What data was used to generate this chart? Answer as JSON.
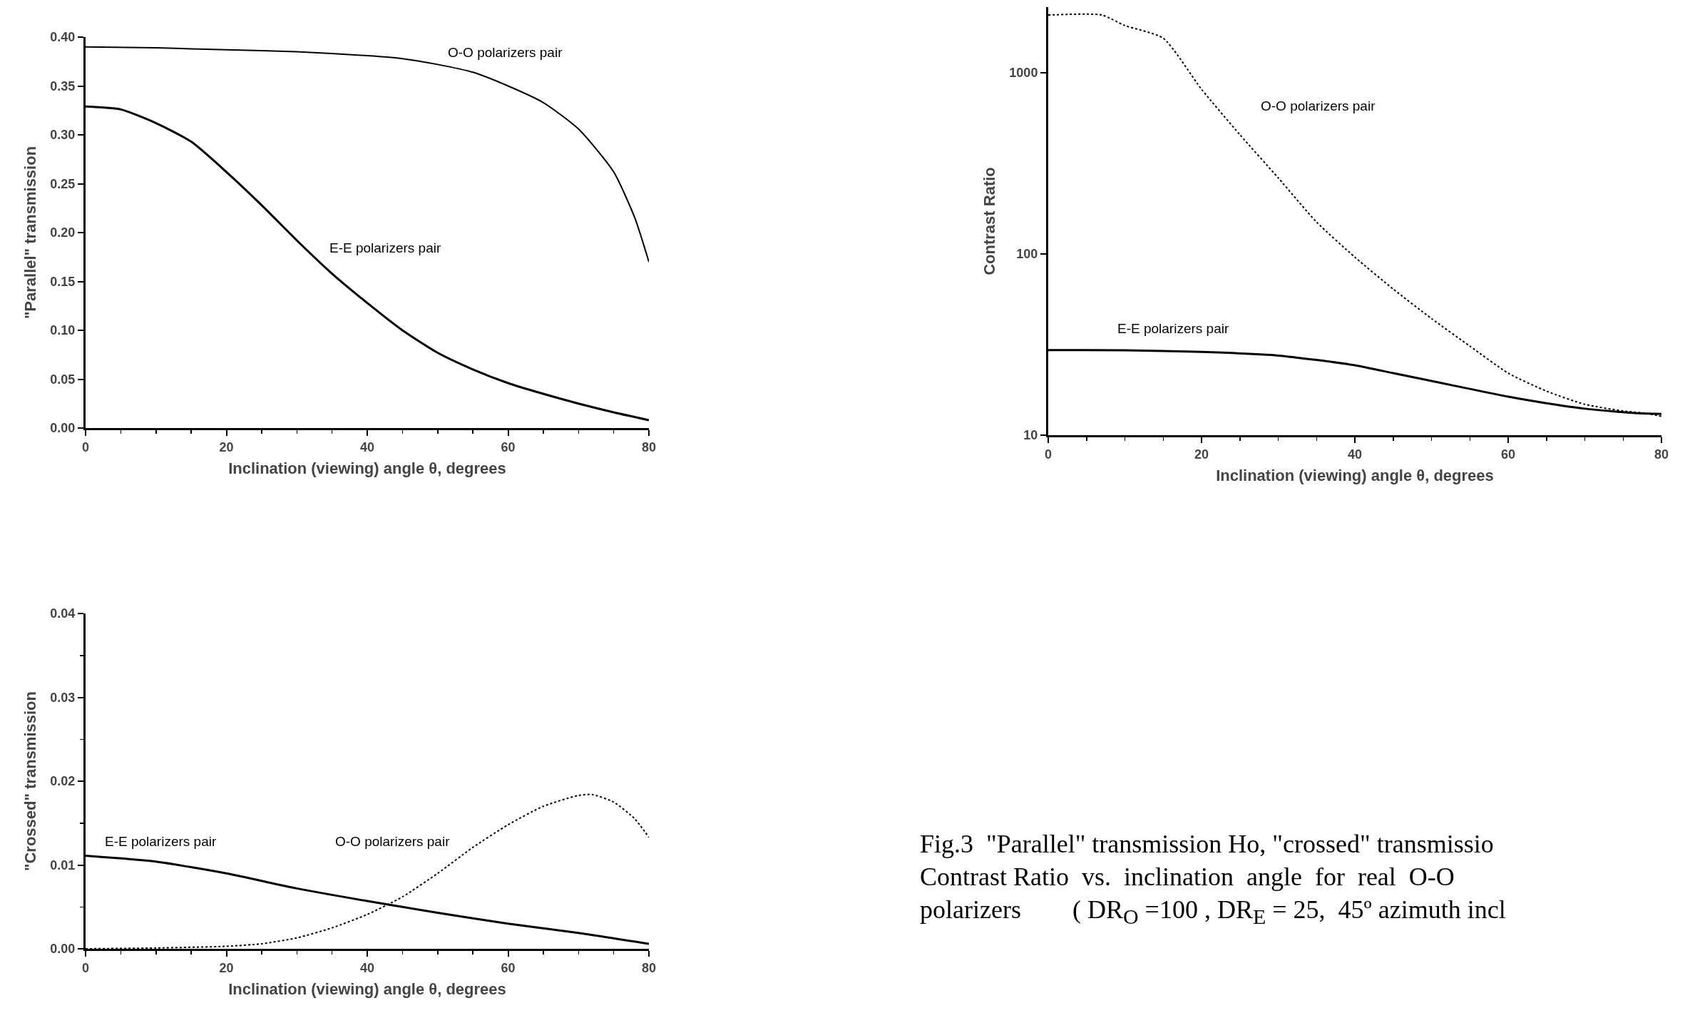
{
  "chart_data": [
    {
      "type": "line",
      "xlabel": "Inclination (viewing) angle θ, degrees",
      "ylabel": "\"Parallel\" transmission",
      "xlim": [
        0,
        80
      ],
      "xticks": [
        0,
        20,
        40,
        60,
        80
      ],
      "ylim": [
        0,
        0.4
      ],
      "yticks": [
        {
          "value": 0,
          "label": "0.00"
        },
        {
          "value": 0.05,
          "label": "0.05"
        },
        {
          "value": 0.1,
          "label": "0.10"
        },
        {
          "value": 0.15,
          "label": "0.15"
        },
        {
          "value": 0.2,
          "label": "0.20"
        },
        {
          "value": 0.25,
          "label": "0.25"
        },
        {
          "value": 0.3,
          "label": "0.30"
        },
        {
          "value": 0.35,
          "label": "0.35"
        },
        {
          "value": 0.4,
          "label": "0.40"
        }
      ],
      "grid": false,
      "legend": false,
      "series": [
        {
          "name": "O-O polarizers pair",
          "color": "#000000",
          "line_style": "solid",
          "x": [
            0,
            10,
            20,
            30,
            40,
            45,
            50,
            55,
            60,
            65,
            70,
            75,
            78,
            80
          ],
          "values": [
            0.39,
            0.389,
            0.387,
            0.385,
            0.381,
            0.378,
            0.372,
            0.364,
            0.35,
            0.333,
            0.306,
            0.262,
            0.215,
            0.17
          ]
        },
        {
          "name": "E-E polarizers pair",
          "color": "#000000",
          "line_style": "solid",
          "x": [
            0,
            5,
            10,
            15,
            20,
            25,
            30,
            35,
            40,
            45,
            50,
            55,
            60,
            65,
            70,
            75,
            80
          ],
          "values": [
            0.329,
            0.326,
            0.312,
            0.293,
            0.262,
            0.228,
            0.192,
            0.158,
            0.128,
            0.1,
            0.077,
            0.06,
            0.046,
            0.035,
            0.025,
            0.016,
            0.008
          ]
        }
      ]
    },
    {
      "type": "line",
      "xlabel": "Inclination (viewing) angle θ, degrees",
      "ylabel": "Contrast Ratio",
      "log": "y",
      "xlim": [
        0,
        80
      ],
      "xticks": [
        0,
        20,
        40,
        60,
        80
      ],
      "ylim": [
        10,
        2300
      ],
      "yticks": [
        10,
        100,
        1000
      ],
      "grid": false,
      "legend": false,
      "series": [
        {
          "name": "O-O polarizers pair",
          "color": "#000000",
          "line_style": "dotted",
          "x": [
            0,
            7,
            10,
            15,
            20,
            25,
            30,
            35,
            40,
            45,
            50,
            55,
            60,
            65,
            70,
            75,
            78,
            80
          ],
          "values": [
            2080,
            2080,
            1820,
            1550,
            810,
            455,
            263,
            150,
            96,
            64,
            44,
            31,
            22,
            17.5,
            14.8,
            13.6,
            13.2,
            12.7
          ]
        },
        {
          "name": "E-E polarizers pair",
          "color": "#000000",
          "line_style": "solid",
          "x": [
            0,
            10,
            20,
            30,
            35,
            40,
            45,
            50,
            55,
            60,
            65,
            70,
            77,
            80
          ],
          "values": [
            29.5,
            29.4,
            28.8,
            27.5,
            26,
            24.3,
            22,
            19.9,
            18,
            16.3,
            15,
            14,
            13.2,
            13.1
          ]
        }
      ]
    },
    {
      "type": "line",
      "xlabel": "Inclination (viewing) angle θ, degrees",
      "ylabel": "\"Crossed\" transmission",
      "xlim": [
        0,
        80
      ],
      "xticks": [
        0,
        20,
        40,
        60,
        80
      ],
      "ylim": [
        0,
        0.04
      ],
      "yticks": [
        {
          "value": 0,
          "label": "0.00"
        },
        {
          "value": 0.01,
          "label": "0.01"
        },
        {
          "value": 0.02,
          "label": "0.02"
        },
        {
          "value": 0.03,
          "label": "0.03"
        },
        {
          "value": 0.04,
          "label": "0.04"
        }
      ],
      "grid": false,
      "legend": false,
      "series": [
        {
          "name": "E-E polarizers pair",
          "color": "#000000",
          "line_style": "solid",
          "x": [
            0,
            10,
            20,
            30,
            40,
            50,
            60,
            70,
            80
          ],
          "values": [
            0.0111,
            0.0104,
            0.009,
            0.0072,
            0.0057,
            0.0043,
            0.003,
            0.0019,
            0.0006
          ]
        },
        {
          "name": "O-O polarizers pair",
          "color": "#000000",
          "line_style": "dotted",
          "x": [
            0,
            10,
            20,
            25,
            30,
            35,
            40,
            45,
            50,
            55,
            60,
            65,
            70,
            72,
            75,
            78,
            80
          ],
          "values": [
            0,
            0.0001,
            0.0003,
            0.0006,
            0.0013,
            0.0025,
            0.0041,
            0.0062,
            0.009,
            0.0121,
            0.0148,
            0.017,
            0.0183,
            0.0184,
            0.0175,
            0.0155,
            0.0133
          ]
        }
      ]
    },
    {
      "type": "other",
      "annotations": [
        "Fig.3  \"Parallel\" transmission Ho, \"crossed\" transmissio",
        "Contrast Ratio  vs.  inclination  angle  for  real  O-O",
        "polarizers        ( DR$_{O}$ =100 , DR$_{E}$ = 25,  45º azimuth incl"
      ]
    }
  ]
}
